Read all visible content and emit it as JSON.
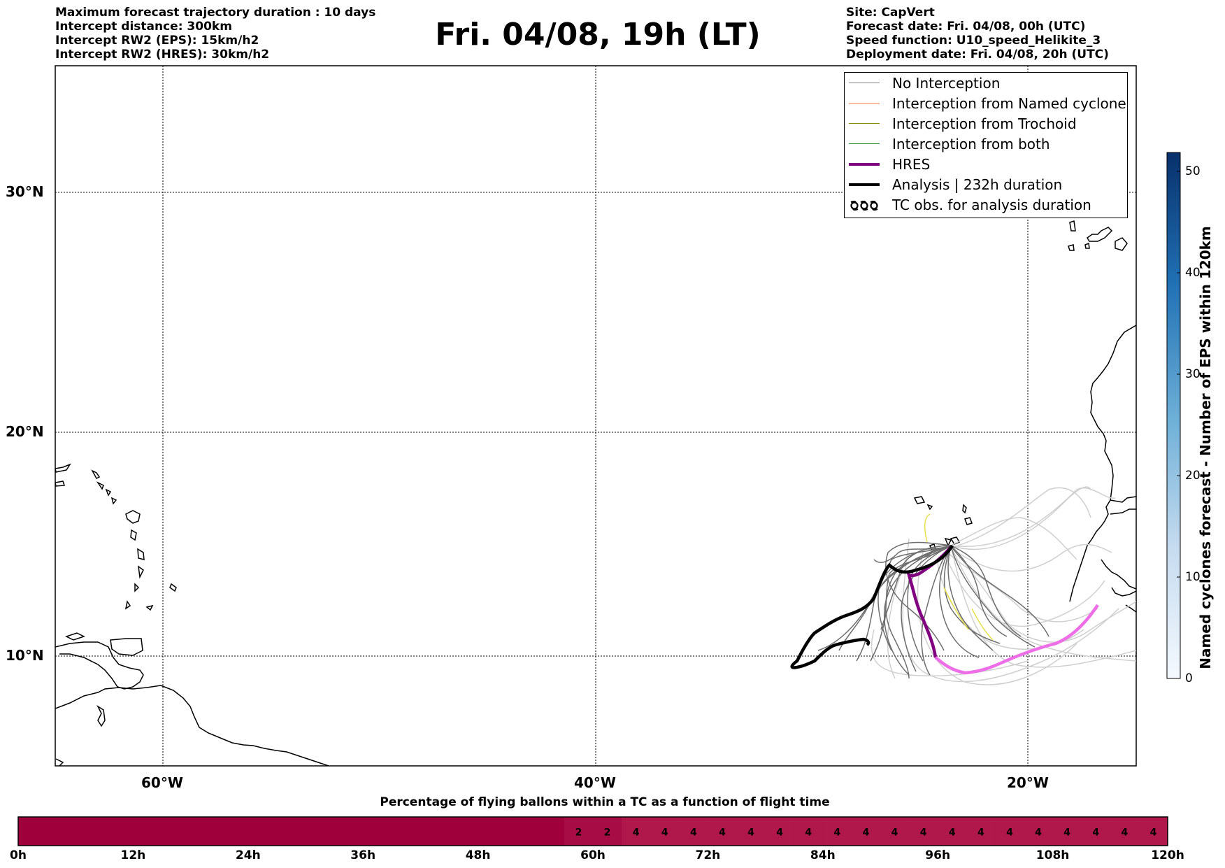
{
  "title": "Fri. 04/08, 19h (LT)",
  "info_left": [
    "Maximum forecast trajectory duration : 10 days",
    "Intercept distance: 300km",
    "Intercept RW2 (EPS):  15km/h2",
    "Intercept RW2 (HRES): 30km/h2"
  ],
  "info_right": [
    "Site: CapVert",
    "Forecast date: Fri. 04/08, 00h (UTC)",
    "Speed function: U10_speed_Helikite_3",
    "Deployment date: Fri. 04/08, 20h (UTC)"
  ],
  "map": {
    "lon_labels": [
      "60°W",
      "40°W",
      "20°W"
    ],
    "lat_labels": [
      "30°N",
      "20°N",
      "10°N"
    ],
    "colors": {
      "eps": "#d0d0d0",
      "eps_dark": "#6e6e6e",
      "trochoid": "#e6e04a",
      "hres": "#800080",
      "hres_late": "#ee6ee8",
      "analysis": "#000000"
    }
  },
  "legend": [
    {
      "label": "No Interception",
      "color": "#808080",
      "width": 1.5
    },
    {
      "label": "Interception from Named cyclone",
      "color": "#ff7f50",
      "width": 1.5
    },
    {
      "label": "Interception from Trochoid",
      "color": "#8b8b00",
      "width": 1.5
    },
    {
      "label": "Interception from both",
      "color": "#228b22",
      "width": 1.5
    },
    {
      "label": "HRES",
      "color": "#800080",
      "width": 4
    },
    {
      "label": "Analysis | 232h duration",
      "color": "#000000",
      "width": 4
    },
    {
      "label": "TC obs. for analysis duration",
      "icon": "cyclone-symbols-icon"
    }
  ],
  "colorbar": {
    "title": "Named cyclones forecast - Number of EPS within 120km",
    "ticks": [
      "50",
      "40",
      "30",
      "20",
      "10",
      "0"
    ],
    "min": 0,
    "max": 52
  },
  "bottom_bar": {
    "title": "Percentage of flying ballons within a TC as a function of flight time",
    "tick_labels": [
      "0h",
      "12h",
      "24h",
      "36h",
      "48h",
      "60h",
      "72h",
      "84h",
      "96h",
      "108h",
      "120h"
    ],
    "cell_values": [
      "",
      "",
      "",
      "",
      "",
      "",
      "",
      "",
      "",
      "",
      "",
      "",
      "",
      "",
      "",
      "",
      "",
      "",
      "",
      "2",
      "2",
      "4",
      "4",
      "4",
      "4",
      "4",
      "4",
      "4",
      "4",
      "4",
      "4",
      "4",
      "4",
      "4",
      "4",
      "4",
      "4",
      "4",
      "4",
      "4"
    ]
  }
}
